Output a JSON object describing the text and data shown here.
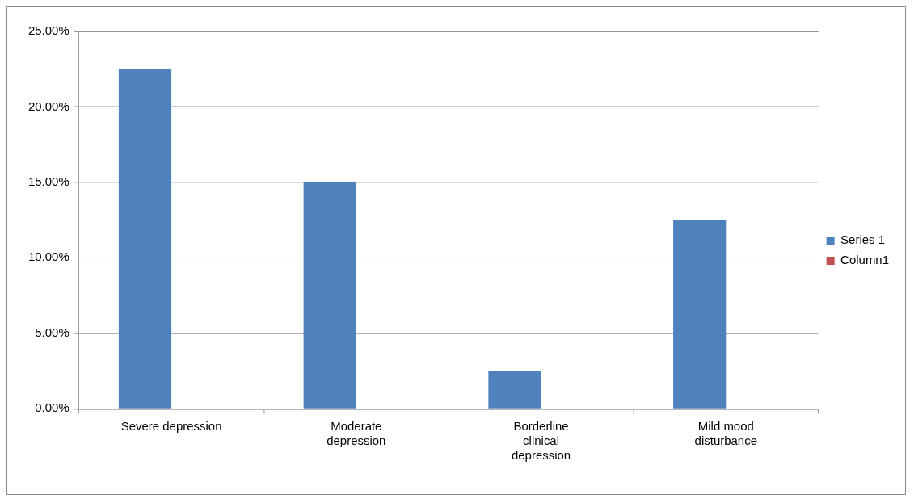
{
  "chart_data": {
    "type": "bar",
    "categories": [
      "Severe depression",
      "Moderate depression",
      "Borderline clinical depression",
      "Mild mood disturbance"
    ],
    "series": [
      {
        "name": "Series 1",
        "color": "#4f81bd",
        "values": [
          22.5,
          15,
          2.5,
          12.5
        ]
      },
      {
        "name": "Column1",
        "color": "#c0504d",
        "values": [
          null,
          null,
          null,
          null
        ]
      }
    ],
    "ylim": [
      0,
      25
    ],
    "yticks": [
      {
        "value": 0,
        "label": "0.00%"
      },
      {
        "value": 5,
        "label": "5.00%"
      },
      {
        "value": 10,
        "label": "10.00%"
      },
      {
        "value": 15,
        "label": "15.00%"
      },
      {
        "value": 20,
        "label": "20.00%"
      },
      {
        "value": 25,
        "label": "25.00%"
      }
    ],
    "grid": "y",
    "legend": "right"
  }
}
